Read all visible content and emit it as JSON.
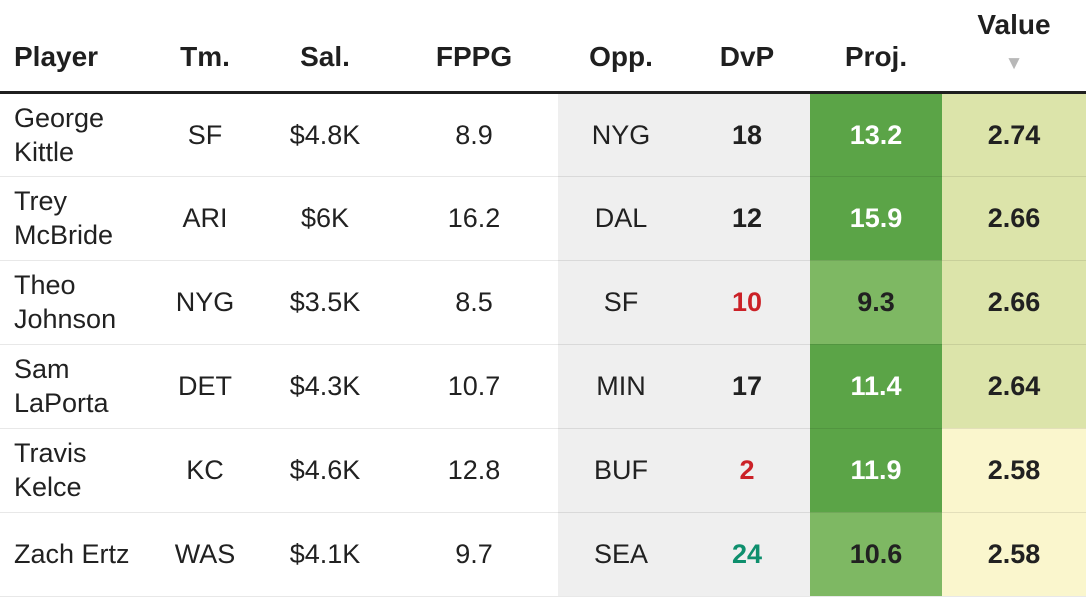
{
  "table": {
    "columns": {
      "player": "Player",
      "tm": "Tm.",
      "sal": "Sal.",
      "fppg": "FPPG",
      "opp": "Opp.",
      "dvp": "DvP",
      "proj": "Proj.",
      "value": "Value"
    },
    "sort": {
      "column": "value",
      "direction": "desc",
      "icon": "▼"
    },
    "rows": [
      {
        "player": "George Kittle",
        "tm": "SF",
        "sal": "$4.8K",
        "fppg": "8.9",
        "opp": "NYG",
        "dvp": "18",
        "dvp_tone": "neutral",
        "proj": "13.2",
        "proj_heat": "green-dark",
        "value": "2.74",
        "value_heat": "yellowgreen"
      },
      {
        "player": "Trey McBride",
        "tm": "ARI",
        "sal": "$6K",
        "fppg": "16.2",
        "opp": "DAL",
        "dvp": "12",
        "dvp_tone": "neutral",
        "proj": "15.9",
        "proj_heat": "green-dark",
        "value": "2.66",
        "value_heat": "yellowgreen"
      },
      {
        "player": "Theo Johnson",
        "tm": "NYG",
        "sal": "$3.5K",
        "fppg": "8.5",
        "opp": "SF",
        "dvp": "10",
        "dvp_tone": "bad",
        "proj": "9.3",
        "proj_heat": "green-light",
        "value": "2.66",
        "value_heat": "yellowgreen"
      },
      {
        "player": "Sam LaPorta",
        "tm": "DET",
        "sal": "$4.3K",
        "fppg": "10.7",
        "opp": "MIN",
        "dvp": "17",
        "dvp_tone": "neutral",
        "proj": "11.4",
        "proj_heat": "green-dark",
        "value": "2.64",
        "value_heat": "yellowgreen"
      },
      {
        "player": "Travis Kelce",
        "tm": "KC",
        "sal": "$4.6K",
        "fppg": "12.8",
        "opp": "BUF",
        "dvp": "2",
        "dvp_tone": "bad",
        "proj": "11.9",
        "proj_heat": "green-dark",
        "value": "2.58",
        "value_heat": "yellow"
      },
      {
        "player": "Zach Ertz",
        "tm": "WAS",
        "sal": "$4.1K",
        "fppg": "9.7",
        "opp": "SEA",
        "dvp": "24",
        "dvp_tone": "good",
        "proj": "10.6",
        "proj_heat": "green-light",
        "value": "2.58",
        "value_heat": "yellow"
      }
    ]
  },
  "colors": {
    "proj_green_dark": "#5ba447",
    "proj_green_light": "#7eb863",
    "value_yellow_green": "#dce4aa",
    "value_pale_yellow": "#faf6cd",
    "dvp_bad_red": "#cb2127",
    "dvp_good_teal": "#0e8f6d",
    "opp_dvp_gray": "#efefef",
    "text": "#212121"
  }
}
